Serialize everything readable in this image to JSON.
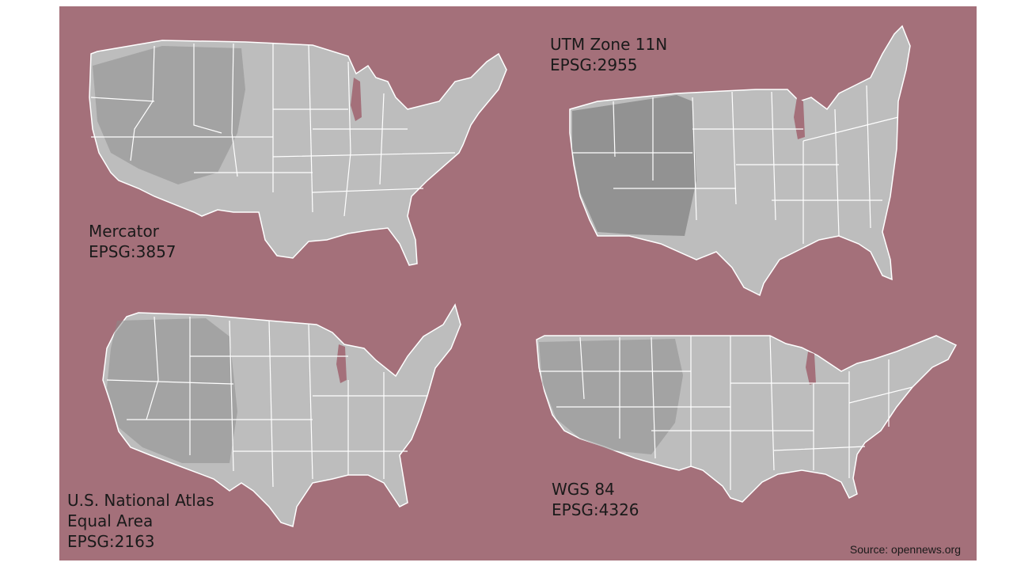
{
  "maps": [
    {
      "projection": "Mercator",
      "epsg": "EPSG:3857"
    },
    {
      "projection": "UTM Zone 11N",
      "epsg": "EPSG:2955"
    },
    {
      "projection_line1": "U.S. National Atlas",
      "projection_line2": "Equal Area",
      "epsg": "EPSG:2163"
    },
    {
      "projection": "WGS 84",
      "epsg": "EPSG:4326"
    }
  ],
  "source": "Source: opennews.org",
  "colors": {
    "background": "#a4707a",
    "land": "#bdbdbd",
    "terrain": "#8a8a8a",
    "state_borders": "#ffffff",
    "lake": "#a4707a"
  }
}
